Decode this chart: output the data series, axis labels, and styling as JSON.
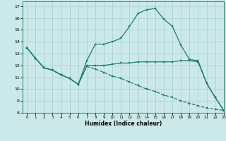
{
  "xlabel": "Humidex (Indice chaleur)",
  "xlim": [
    -0.5,
    23
  ],
  "ylim": [
    8,
    17.4
  ],
  "yticks": [
    8,
    9,
    10,
    11,
    12,
    13,
    14,
    15,
    16,
    17
  ],
  "xticks": [
    0,
    1,
    2,
    3,
    4,
    5,
    6,
    7,
    8,
    9,
    10,
    11,
    12,
    13,
    14,
    15,
    16,
    17,
    18,
    19,
    20,
    21,
    22,
    23
  ],
  "bg_color": "#cce9e9",
  "grid_color": "#b0d4d4",
  "line_color": "#1e7b6b",
  "series_peak": {
    "x": [
      0,
      1,
      2,
      3,
      4,
      5,
      6,
      7,
      8,
      9,
      10,
      11,
      12,
      13,
      14,
      15,
      16,
      17,
      18,
      19,
      20,
      21,
      22,
      23
    ],
    "y": [
      13.5,
      12.6,
      11.8,
      11.6,
      11.2,
      10.9,
      10.4,
      12.4,
      13.8,
      13.8,
      14.0,
      14.3,
      15.3,
      16.4,
      16.7,
      16.8,
      15.9,
      15.3,
      13.7,
      12.5,
      12.4,
      10.5,
      9.3,
      8.2
    ]
  },
  "series_flat": {
    "x": [
      0,
      1,
      2,
      3,
      4,
      5,
      6,
      7,
      8,
      9,
      10,
      11,
      12,
      13,
      14,
      15,
      16,
      17,
      18,
      19,
      20,
      21,
      22,
      23
    ],
    "y": [
      13.5,
      12.6,
      11.8,
      11.6,
      11.2,
      10.9,
      10.4,
      12.0,
      12.0,
      12.0,
      12.1,
      12.2,
      12.2,
      12.3,
      12.3,
      12.3,
      12.3,
      12.3,
      12.4,
      12.4,
      12.3,
      10.5,
      9.3,
      8.2
    ]
  },
  "series_down": {
    "x": [
      0,
      1,
      2,
      3,
      4,
      5,
      6,
      7,
      8,
      9,
      10,
      11,
      12,
      13,
      14,
      15,
      16,
      17,
      18,
      19,
      20,
      21,
      22,
      23
    ],
    "y": [
      13.5,
      12.6,
      11.8,
      11.6,
      11.2,
      10.9,
      10.4,
      11.9,
      11.7,
      11.4,
      11.1,
      10.9,
      10.6,
      10.3,
      10.0,
      9.8,
      9.5,
      9.3,
      9.0,
      8.8,
      8.6,
      8.4,
      8.3,
      8.2
    ]
  }
}
